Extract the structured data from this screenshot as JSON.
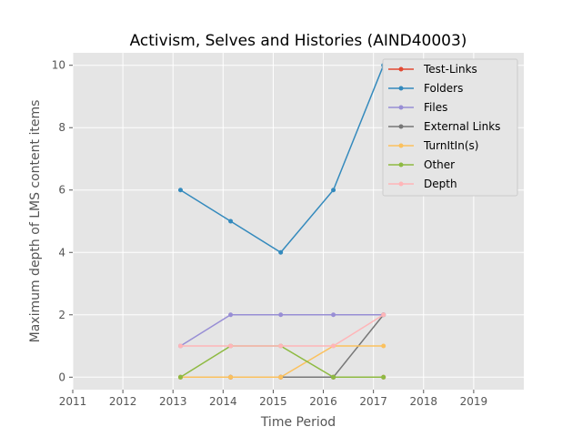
{
  "chart_data": {
    "type": "line",
    "title": "Activism, Selves and Histories (AIND40003)",
    "xlabel": "Time Period",
    "ylabel": "Maximum depth of LMS content items",
    "xlim": [
      2011,
      2020
    ],
    "ylim": [
      -0.4,
      10.4
    ],
    "x_ticks": [
      "2011",
      "2012",
      "2013",
      "2014",
      "2015",
      "2016",
      "2017",
      "2018",
      "2019"
    ],
    "y_ticks": [
      "0",
      "2",
      "4",
      "6",
      "8",
      "10"
    ],
    "grid": true,
    "legend_position": "top-right",
    "x": [
      2013.15,
      2014.15,
      2015.15,
      2016.2,
      2017.2
    ],
    "series": [
      {
        "name": "Test-Links",
        "color": "#E24A33",
        "values": [
          0,
          0,
          0,
          0,
          0
        ]
      },
      {
        "name": "Folders",
        "color": "#348ABD",
        "values": [
          6,
          5,
          4,
          6,
          10
        ]
      },
      {
        "name": "Files",
        "color": "#988ED5",
        "values": [
          1,
          2,
          2,
          2,
          2
        ]
      },
      {
        "name": "External Links",
        "color": "#777777",
        "values": [
          0,
          0,
          0,
          0,
          2
        ]
      },
      {
        "name": "TurnItIn(s)",
        "color": "#FBC15E",
        "values": [
          0,
          0,
          0,
          1,
          1
        ]
      },
      {
        "name": "Other",
        "color": "#8EBA42",
        "values": [
          0,
          1,
          1,
          0,
          0
        ]
      },
      {
        "name": "Depth",
        "color": "#FFB5B8",
        "values": [
          1,
          1,
          1,
          1,
          2
        ]
      }
    ]
  }
}
